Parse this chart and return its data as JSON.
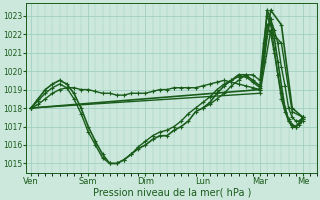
{
  "bg_color": "#cce8dd",
  "grid_color": "#99ccbb",
  "line_color": "#1a5c1a",
  "marker_color": "#1a5c1a",
  "xlabel": "Pression niveau de la mer( hPa )",
  "xlabel_fontsize": 7,
  "yticks": [
    1015,
    1016,
    1017,
    1018,
    1019,
    1020,
    1021,
    1022,
    1023
  ],
  "ylim": [
    1014.5,
    1023.7
  ],
  "xtick_labels": [
    "Ven",
    "Sam",
    "Dim",
    "Lun",
    "Mar",
    "Me"
  ],
  "xtick_positions": [
    0,
    48,
    96,
    144,
    192,
    228
  ],
  "xlim": [
    -4,
    240
  ],
  "series": [
    {
      "x": [
        0,
        6,
        12,
        18,
        24,
        30,
        36,
        42,
        48,
        54,
        60,
        66,
        72,
        78,
        84,
        90,
        96,
        102,
        108,
        114,
        120,
        126,
        132,
        138,
        144,
        150,
        156,
        162,
        168,
        174,
        180,
        186,
        192,
        195,
        198,
        201,
        204,
        207,
        210,
        213,
        216,
        219,
        222,
        225,
        228
      ],
      "y": [
        1018.0,
        1018.2,
        1018.5,
        1018.8,
        1019.0,
        1019.1,
        1019.1,
        1019.0,
        1019.0,
        1018.9,
        1018.8,
        1018.8,
        1018.7,
        1018.7,
        1018.8,
        1018.8,
        1018.8,
        1018.9,
        1019.0,
        1019.0,
        1019.1,
        1019.1,
        1019.1,
        1019.1,
        1019.2,
        1019.3,
        1019.4,
        1019.5,
        1019.4,
        1019.3,
        1019.2,
        1019.1,
        1019.0,
        1020.5,
        1022.0,
        1022.8,
        1022.2,
        1021.5,
        1020.2,
        1019.2,
        1018.0,
        1017.5,
        1017.3,
        1017.3,
        1017.5
      ],
      "marker": "+",
      "linewidth": 1.0,
      "markersize": 3
    },
    {
      "x": [
        0,
        6,
        12,
        18,
        24,
        30,
        36,
        42,
        48,
        54,
        60,
        66,
        72,
        78,
        84,
        90,
        96,
        102,
        108,
        114,
        120,
        126,
        132,
        138,
        144,
        150,
        156,
        162,
        168,
        174,
        180,
        186,
        192,
        195,
        198,
        201,
        204,
        207,
        210,
        213,
        216,
        219,
        222,
        225,
        228
      ],
      "y": [
        1018.0,
        1018.5,
        1019.0,
        1019.3,
        1019.5,
        1019.3,
        1018.8,
        1018.0,
        1017.0,
        1016.2,
        1015.5,
        1015.0,
        1015.0,
        1015.2,
        1015.5,
        1015.8,
        1016.0,
        1016.3,
        1016.5,
        1016.5,
        1016.8,
        1017.0,
        1017.3,
        1017.8,
        1018.0,
        1018.3,
        1018.8,
        1019.2,
        1019.5,
        1019.8,
        1019.8,
        1019.5,
        1019.2,
        1021.0,
        1023.3,
        1022.8,
        1021.8,
        1020.5,
        1019.2,
        1018.0,
        1017.3,
        1017.0,
        1017.0,
        1017.2,
        1017.5
      ],
      "marker": "+",
      "linewidth": 1.2,
      "markersize": 3
    },
    {
      "x": [
        0,
        6,
        12,
        18,
        24,
        30,
        36,
        42,
        48,
        54,
        60,
        66,
        72,
        78,
        84,
        90,
        96,
        102,
        108,
        114,
        120,
        126,
        132,
        138,
        144,
        150,
        156,
        162,
        168,
        174,
        180,
        186,
        192,
        195,
        198,
        201,
        204,
        207,
        210,
        213,
        216,
        219,
        222,
        225,
        228
      ],
      "y": [
        1018.0,
        1018.4,
        1018.8,
        1019.1,
        1019.3,
        1019.1,
        1018.5,
        1017.7,
        1016.7,
        1016.0,
        1015.3,
        1015.0,
        1015.0,
        1015.2,
        1015.5,
        1015.9,
        1016.2,
        1016.5,
        1016.7,
        1016.8,
        1017.0,
        1017.3,
        1017.7,
        1018.0,
        1018.3,
        1018.6,
        1019.0,
        1019.3,
        1019.5,
        1019.7,
        1019.7,
        1019.4,
        1019.1,
        1020.8,
        1022.5,
        1022.0,
        1021.0,
        1019.8,
        1018.8,
        1018.0,
        1017.4,
        1017.1,
        1017.0,
        1017.2,
        1017.4
      ],
      "marker": "+",
      "linewidth": 1.0,
      "markersize": 3
    },
    {
      "x": [
        0,
        192,
        201,
        210,
        219,
        228
      ],
      "y": [
        1018.0,
        1019.0,
        1023.3,
        1022.5,
        1018.0,
        1017.5
      ],
      "marker": "+",
      "linewidth": 1.2,
      "markersize": 3
    },
    {
      "x": [
        0,
        192,
        201,
        210,
        219,
        228
      ],
      "y": [
        1018.0,
        1018.8,
        1022.2,
        1021.5,
        1017.8,
        1017.5
      ],
      "marker": "+",
      "linewidth": 1.0,
      "markersize": 3
    },
    {
      "x": [
        144,
        150,
        156,
        162,
        168,
        174,
        180,
        186,
        192,
        195,
        198,
        201,
        204,
        207,
        210,
        213,
        216,
        219,
        222,
        225,
        228
      ],
      "y": [
        1018.0,
        1018.2,
        1018.5,
        1018.8,
        1019.2,
        1019.5,
        1019.8,
        1019.8,
        1019.5,
        1021.5,
        1023.0,
        1022.5,
        1021.2,
        1019.8,
        1018.5,
        1017.8,
        1017.3,
        1017.1,
        1017.0,
        1017.1,
        1017.3
      ],
      "marker": "+",
      "linewidth": 1.0,
      "markersize": 3
    }
  ]
}
